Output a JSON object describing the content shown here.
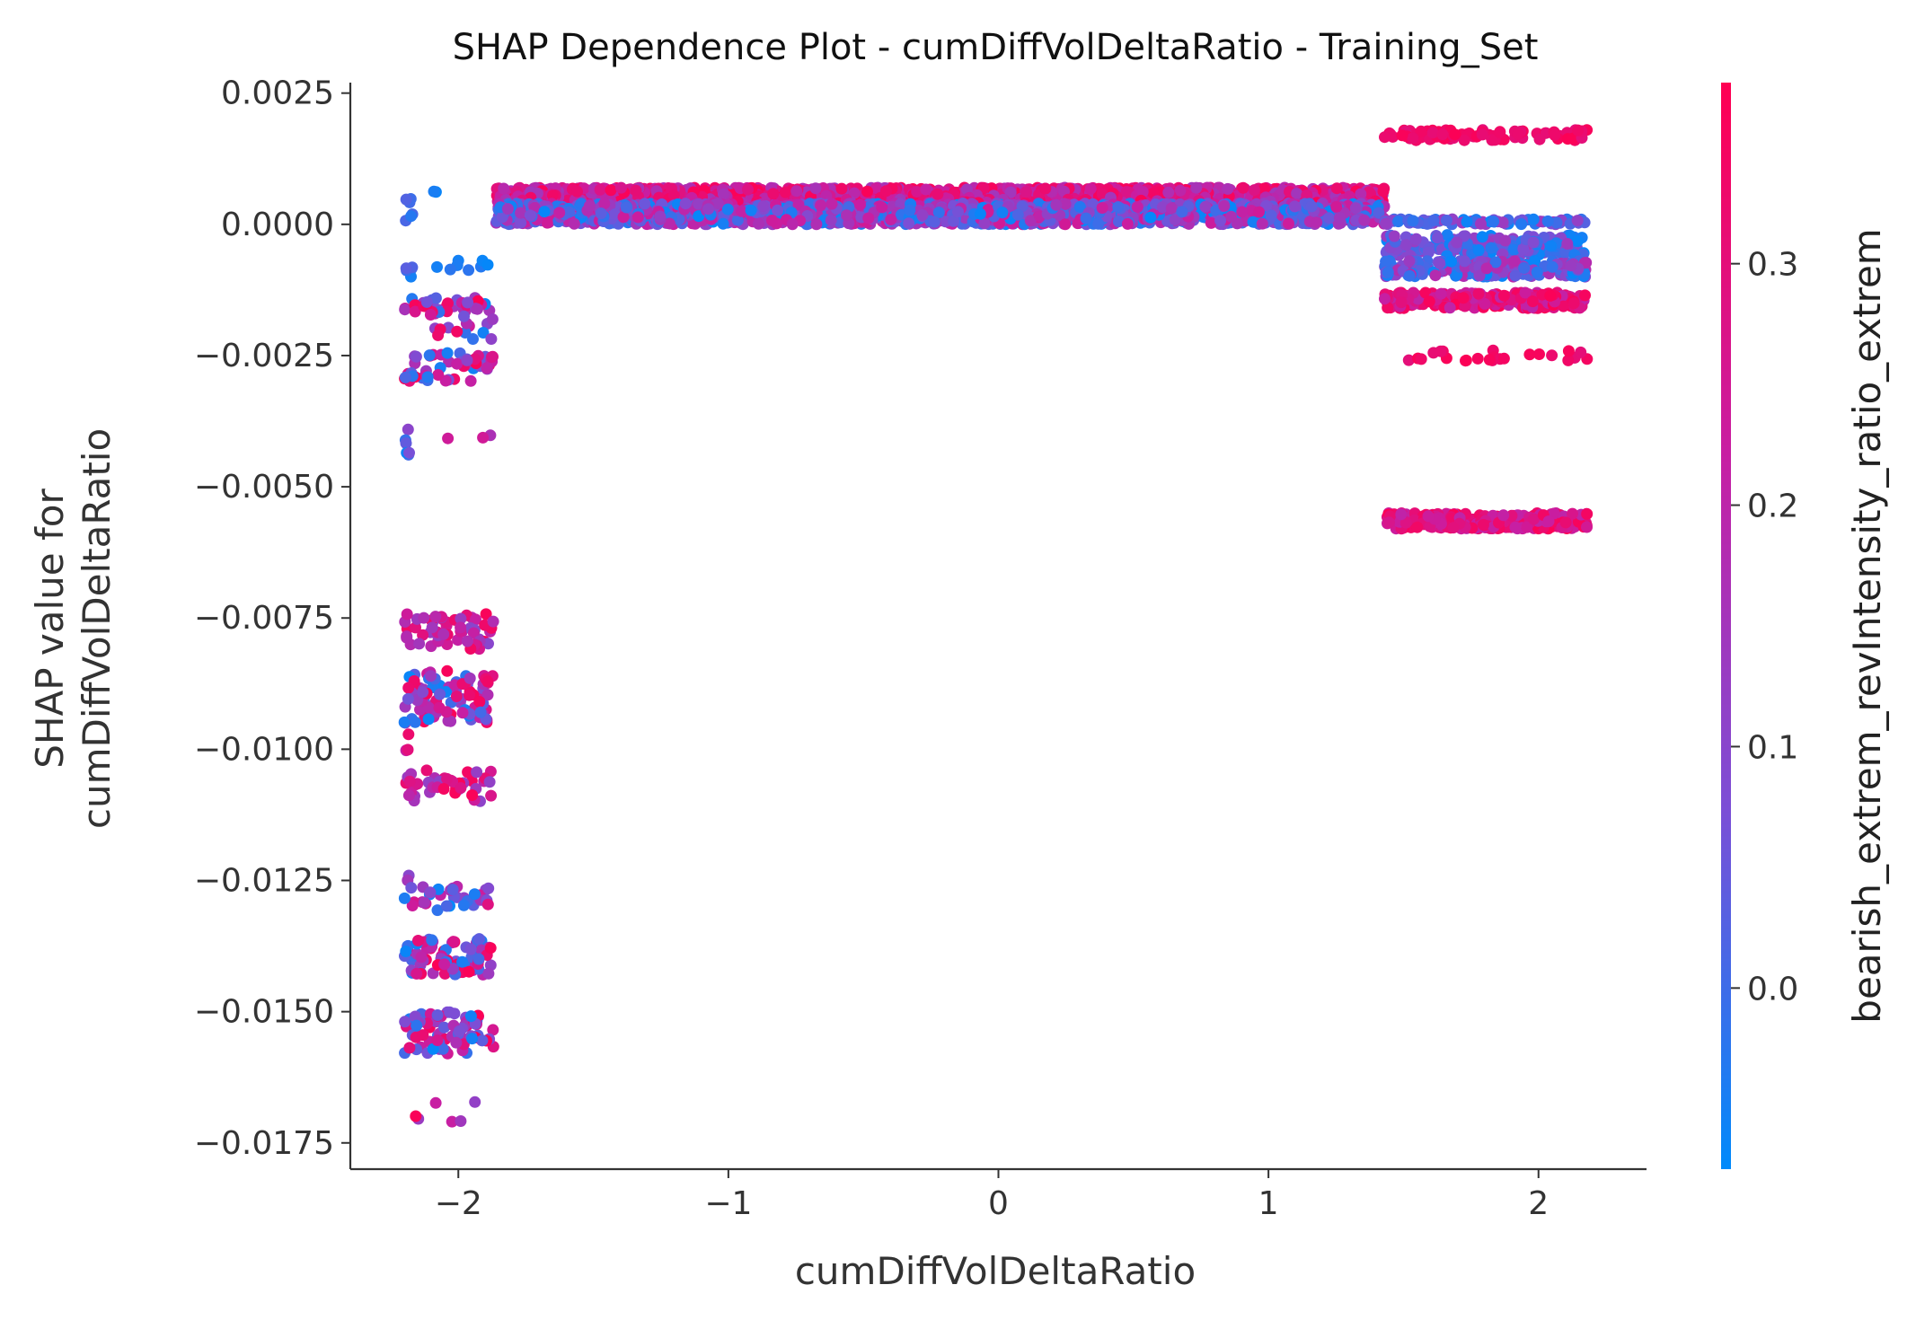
{
  "chart_data": {
    "type": "scatter",
    "title": "SHAP Dependence Plot - cumDiffVolDeltaRatio - Training_Set",
    "xlabel": "cumDiffVolDeltaRatio",
    "ylabel_line1": "SHAP value for",
    "ylabel_line2": "cumDiffVolDeltaRatio",
    "xlim": [
      -2.4,
      2.4
    ],
    "ylim": [
      -0.018,
      0.0027
    ],
    "x_ticks": [
      -2,
      -1,
      0,
      1,
      2
    ],
    "x_tick_labels": [
      "−2",
      "−1",
      "0",
      "1",
      "2"
    ],
    "y_ticks": [
      0.0025,
      0.0,
      -0.0025,
      -0.005,
      -0.0075,
      -0.01,
      -0.0125,
      -0.015,
      -0.0175
    ],
    "y_tick_labels": [
      "0.0025",
      "0.0000",
      "−0.0025",
      "−0.0050",
      "−0.0075",
      "−0.0100",
      "−0.0125",
      "−0.0150",
      "−0.0175"
    ],
    "grid": false,
    "colorbar": {
      "label": "bearish_extrem_revIntensity_ratio_extrem",
      "range": [
        -0.075,
        0.375
      ],
      "ticks": [
        0.0,
        0.1,
        0.2,
        0.3
      ],
      "tick_labels": [
        "0.0",
        "0.1",
        "0.2",
        "0.3"
      ],
      "colors": [
        "#008afb",
        "#7b4fd6",
        "#c81ea2",
        "#ff0052"
      ]
    },
    "clusters": [
      {
        "x": [
          -2.2,
          -2.17
        ],
        "y": [
          0.0006,
          0.0
        ],
        "c": [
          -0.07,
          0.05
        ],
        "n": 6
      },
      {
        "x": [
          -2.1,
          -2.08
        ],
        "y": [
          0.0007,
          0.0006
        ],
        "c": [
          -0.07,
          0.0
        ],
        "n": 2
      },
      {
        "x": [
          -2.2,
          -2.17
        ],
        "y": [
          -0.0011,
          -0.0005
        ],
        "c": [
          -0.07,
          0.05
        ],
        "n": 6
      },
      {
        "x": [
          -2.08,
          -1.88
        ],
        "y": [
          -0.0009,
          -0.0006
        ],
        "c": [
          -0.07,
          0.0
        ],
        "n": 8
      },
      {
        "x": [
          -2.2,
          -1.87
        ],
        "y": [
          -0.0017,
          -0.0014
        ],
        "c": [
          -0.07,
          0.37
        ],
        "n": 40
      },
      {
        "x": [
          -2.2,
          -1.87
        ],
        "y": [
          -0.0022,
          -0.0017
        ],
        "c": [
          -0.07,
          0.37
        ],
        "n": 15
      },
      {
        "x": [
          -2.2,
          -1.87
        ],
        "y": [
          -0.003,
          -0.0024
        ],
        "c": [
          -0.07,
          0.37
        ],
        "n": 50
      },
      {
        "x": [
          -2.2,
          -2.18
        ],
        "y": [
          -0.0044,
          -0.0038
        ],
        "c": [
          -0.07,
          0.2
        ],
        "n": 6
      },
      {
        "x": [
          -2.05,
          -1.87
        ],
        "y": [
          -0.0041,
          -0.004
        ],
        "c": [
          0.15,
          0.25
        ],
        "n": 3
      },
      {
        "x": [
          -2.2,
          -1.87
        ],
        "y": [
          -0.0081,
          -0.0074
        ],
        "c": [
          0.1,
          0.37
        ],
        "n": 55
      },
      {
        "x": [
          -2.2,
          -1.87
        ],
        "y": [
          -0.0095,
          -0.0085
        ],
        "c": [
          -0.07,
          0.37
        ],
        "n": 90
      },
      {
        "x": [
          -2.2,
          -2.18
        ],
        "y": [
          -0.0101,
          -0.0097
        ],
        "c": [
          0.2,
          0.35
        ],
        "n": 3
      },
      {
        "x": [
          -2.2,
          -1.87
        ],
        "y": [
          -0.011,
          -0.0104
        ],
        "c": [
          0.1,
          0.37
        ],
        "n": 40
      },
      {
        "x": [
          -2.2,
          -2.18
        ],
        "y": [
          -0.0125,
          -0.0123
        ],
        "c": [
          0.1,
          0.2
        ],
        "n": 2
      },
      {
        "x": [
          -2.2,
          -1.87
        ],
        "y": [
          -0.0131,
          -0.0126
        ],
        "c": [
          -0.07,
          0.3
        ],
        "n": 35
      },
      {
        "x": [
          -2.2,
          -1.87
        ],
        "y": [
          -0.0143,
          -0.0136
        ],
        "c": [
          -0.07,
          0.37
        ],
        "n": 80
      },
      {
        "x": [
          -2.2,
          -1.87
        ],
        "y": [
          -0.0158,
          -0.015
        ],
        "c": [
          -0.07,
          0.37
        ],
        "n": 80
      },
      {
        "x": [
          -2.2,
          -1.9
        ],
        "y": [
          -0.0171,
          -0.0167
        ],
        "c": [
          0.1,
          0.37
        ],
        "n": 6
      },
      {
        "x": [
          -1.86,
          1.43
        ],
        "y": [
          0.0004,
          0.0007
        ],
        "c": [
          0.15,
          0.37
        ],
        "n": 1500
      },
      {
        "x": [
          -1.86,
          1.43
        ],
        "y": [
          0.0,
          0.0004
        ],
        "c": [
          -0.07,
          0.25
        ],
        "n": 1500
      },
      {
        "x": [
          1.43,
          2.18
        ],
        "y": [
          0.0016,
          0.0018
        ],
        "c": [
          0.3,
          0.37
        ],
        "n": 90
      },
      {
        "x": [
          1.43,
          2.18
        ],
        "y": [
          0.0,
          0.0001
        ],
        "c": [
          -0.07,
          0.15
        ],
        "n": 80
      },
      {
        "x": [
          1.43,
          2.18
        ],
        "y": [
          -0.0006,
          -0.0002
        ],
        "c": [
          -0.07,
          0.15
        ],
        "n": 200
      },
      {
        "x": [
          1.43,
          2.18
        ],
        "y": [
          -0.001,
          -0.0007
        ],
        "c": [
          -0.07,
          0.2
        ],
        "n": 220
      },
      {
        "x": [
          1.43,
          2.18
        ],
        "y": [
          -0.0016,
          -0.0013
        ],
        "c": [
          0.2,
          0.37
        ],
        "n": 220
      },
      {
        "x": [
          1.5,
          2.18
        ],
        "y": [
          -0.0026,
          -0.0024
        ],
        "c": [
          0.3,
          0.37
        ],
        "n": 25
      },
      {
        "x": [
          1.43,
          2.18
        ],
        "y": [
          -0.0058,
          -0.0055
        ],
        "c": [
          0.2,
          0.37
        ],
        "n": 260
      }
    ]
  }
}
